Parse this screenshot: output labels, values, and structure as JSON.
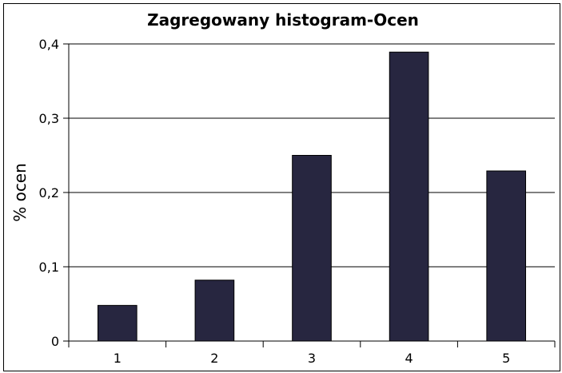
{
  "chart_data": {
    "type": "bar",
    "title": "Zagregowany histogram-Ocen",
    "xlabel": "",
    "ylabel": "% ocen",
    "categories": [
      "1",
      "2",
      "3",
      "4",
      "5"
    ],
    "values": [
      0.048,
      0.082,
      0.25,
      0.389,
      0.229
    ],
    "ylim": [
      0,
      0.4
    ],
    "yticks": [
      0,
      0.1,
      0.2,
      0.3,
      0.4
    ],
    "ytick_labels": [
      "0",
      "0,1",
      "0,2",
      "0,3",
      "0,4"
    ],
    "grid": true,
    "legend": "none",
    "colors": {
      "bar": "#272640",
      "grid": "#000000",
      "axis": "#000000"
    }
  }
}
